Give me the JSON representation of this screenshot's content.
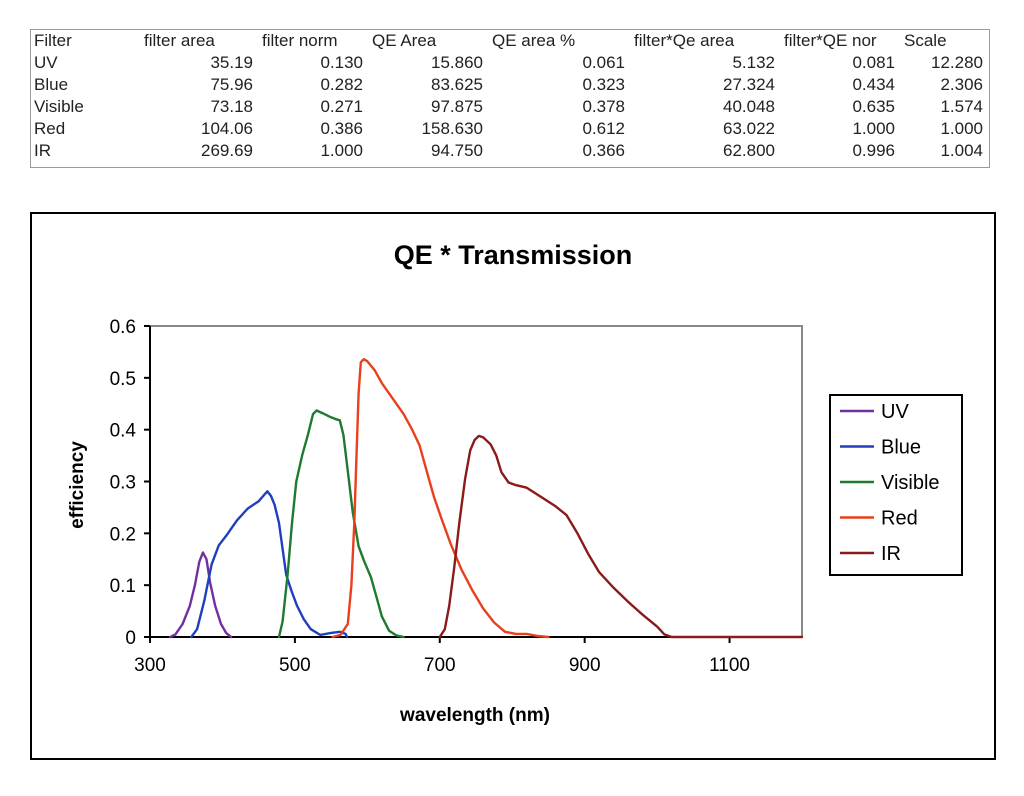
{
  "table": {
    "headers": [
      "Filter",
      "filter area",
      "filter norm",
      "QE Area",
      "QE area %",
      "filter*Qe area",
      "filter*QE nor",
      "Scale"
    ],
    "rows": [
      [
        "UV",
        "35.19",
        "0.130",
        "15.860",
        "0.061",
        "5.132",
        "0.081",
        "12.280"
      ],
      [
        "Blue",
        "75.96",
        "0.282",
        "83.625",
        "0.323",
        "27.324",
        "0.434",
        "2.306"
      ],
      [
        "Visible",
        "73.18",
        "0.271",
        "97.875",
        "0.378",
        "40.048",
        "0.635",
        "1.574"
      ],
      [
        "Red",
        "104.06",
        "0.386",
        "158.630",
        "0.612",
        "63.022",
        "1.000",
        "1.000"
      ],
      [
        "IR",
        "269.69",
        "1.000",
        "94.750",
        "0.366",
        "62.800",
        "0.996",
        "1.004"
      ]
    ]
  },
  "chart_data": {
    "type": "line",
    "title": "QE * Transmission",
    "xlabel": "wavelength (nm)",
    "ylabel": "efficiency",
    "xlim": [
      300,
      1200
    ],
    "ylim": [
      0,
      0.6
    ],
    "x_ticks": [
      "300",
      "500",
      "700",
      "900",
      "1100"
    ],
    "x_tick_values": [
      300,
      500,
      700,
      900,
      1100
    ],
    "y_ticks": [
      "0",
      "0.1",
      "0.2",
      "0.3",
      "0.4",
      "0.5",
      "0.6"
    ],
    "y_tick_values": [
      0,
      0.1,
      0.2,
      0.3,
      0.4,
      0.5,
      0.6
    ],
    "grid": false,
    "legend": "right",
    "plot_background": "#ffffff",
    "plot_border_color": "#888888",
    "series": [
      {
        "name": "UV",
        "color": "#7030a0",
        "points": [
          [
            328,
            0
          ],
          [
            335,
            0.005
          ],
          [
            345,
            0.025
          ],
          [
            355,
            0.06
          ],
          [
            362,
            0.1
          ],
          [
            368,
            0.145
          ],
          [
            373,
            0.163
          ],
          [
            378,
            0.15
          ],
          [
            383,
            0.105
          ],
          [
            390,
            0.06
          ],
          [
            398,
            0.025
          ],
          [
            405,
            0.008
          ],
          [
            412,
            0
          ]
        ]
      },
      {
        "name": "Blue",
        "color": "#1f3fbf",
        "points": [
          [
            357,
            0
          ],
          [
            365,
            0.015
          ],
          [
            375,
            0.07
          ],
          [
            385,
            0.14
          ],
          [
            395,
            0.177
          ],
          [
            405,
            0.195
          ],
          [
            420,
            0.225
          ],
          [
            435,
            0.248
          ],
          [
            450,
            0.262
          ],
          [
            458,
            0.275
          ],
          [
            462,
            0.281
          ],
          [
            467,
            0.272
          ],
          [
            472,
            0.255
          ],
          [
            478,
            0.22
          ],
          [
            483,
            0.17
          ],
          [
            488,
            0.12
          ],
          [
            495,
            0.09
          ],
          [
            503,
            0.06
          ],
          [
            512,
            0.035
          ],
          [
            522,
            0.015
          ],
          [
            535,
            0.004
          ],
          [
            550,
            0.008
          ],
          [
            562,
            0.01
          ],
          [
            570,
            0.006
          ],
          [
            572,
            0
          ]
        ]
      },
      {
        "name": "Visible",
        "color": "#1e7a2e",
        "points": [
          [
            478,
            0
          ],
          [
            483,
            0.03
          ],
          [
            490,
            0.12
          ],
          [
            496,
            0.22
          ],
          [
            502,
            0.3
          ],
          [
            510,
            0.35
          ],
          [
            518,
            0.39
          ],
          [
            525,
            0.43
          ],
          [
            530,
            0.437
          ],
          [
            538,
            0.432
          ],
          [
            548,
            0.425
          ],
          [
            557,
            0.42
          ],
          [
            562,
            0.418
          ],
          [
            567,
            0.39
          ],
          [
            573,
            0.32
          ],
          [
            580,
            0.24
          ],
          [
            588,
            0.175
          ],
          [
            596,
            0.145
          ],
          [
            605,
            0.115
          ],
          [
            613,
            0.075
          ],
          [
            620,
            0.04
          ],
          [
            630,
            0.012
          ],
          [
            640,
            0.003
          ],
          [
            650,
            0
          ]
        ]
      },
      {
        "name": "Red",
        "color": "#e8401c",
        "points": [
          [
            552,
            0
          ],
          [
            563,
            0.004
          ],
          [
            573,
            0.025
          ],
          [
            578,
            0.1
          ],
          [
            582,
            0.22
          ],
          [
            585,
            0.35
          ],
          [
            588,
            0.47
          ],
          [
            591,
            0.53
          ],
          [
            595,
            0.536
          ],
          [
            600,
            0.532
          ],
          [
            610,
            0.515
          ],
          [
            620,
            0.49
          ],
          [
            635,
            0.46
          ],
          [
            650,
            0.43
          ],
          [
            662,
            0.4
          ],
          [
            672,
            0.37
          ],
          [
            682,
            0.32
          ],
          [
            692,
            0.27
          ],
          [
            702,
            0.23
          ],
          [
            715,
            0.18
          ],
          [
            730,
            0.13
          ],
          [
            745,
            0.09
          ],
          [
            760,
            0.055
          ],
          [
            775,
            0.028
          ],
          [
            790,
            0.01
          ],
          [
            805,
            0.006
          ],
          [
            820,
            0.006
          ],
          [
            835,
            0.002
          ],
          [
            850,
            0
          ]
        ]
      },
      {
        "name": "IR",
        "color": "#8b1a1a",
        "points": [
          [
            700,
            0
          ],
          [
            707,
            0.015
          ],
          [
            713,
            0.06
          ],
          [
            720,
            0.135
          ],
          [
            727,
            0.22
          ],
          [
            735,
            0.305
          ],
          [
            742,
            0.36
          ],
          [
            748,
            0.38
          ],
          [
            754,
            0.388
          ],
          [
            760,
            0.385
          ],
          [
            770,
            0.372
          ],
          [
            778,
            0.35
          ],
          [
            785,
            0.318
          ],
          [
            795,
            0.298
          ],
          [
            805,
            0.293
          ],
          [
            820,
            0.288
          ],
          [
            840,
            0.27
          ],
          [
            860,
            0.252
          ],
          [
            875,
            0.235
          ],
          [
            890,
            0.2
          ],
          [
            905,
            0.16
          ],
          [
            920,
            0.125
          ],
          [
            940,
            0.095
          ],
          [
            960,
            0.068
          ],
          [
            980,
            0.043
          ],
          [
            1000,
            0.02
          ],
          [
            1010,
            0.005
          ],
          [
            1020,
            0
          ],
          [
            1100,
            0
          ],
          [
            1200,
            0
          ]
        ]
      }
    ]
  }
}
